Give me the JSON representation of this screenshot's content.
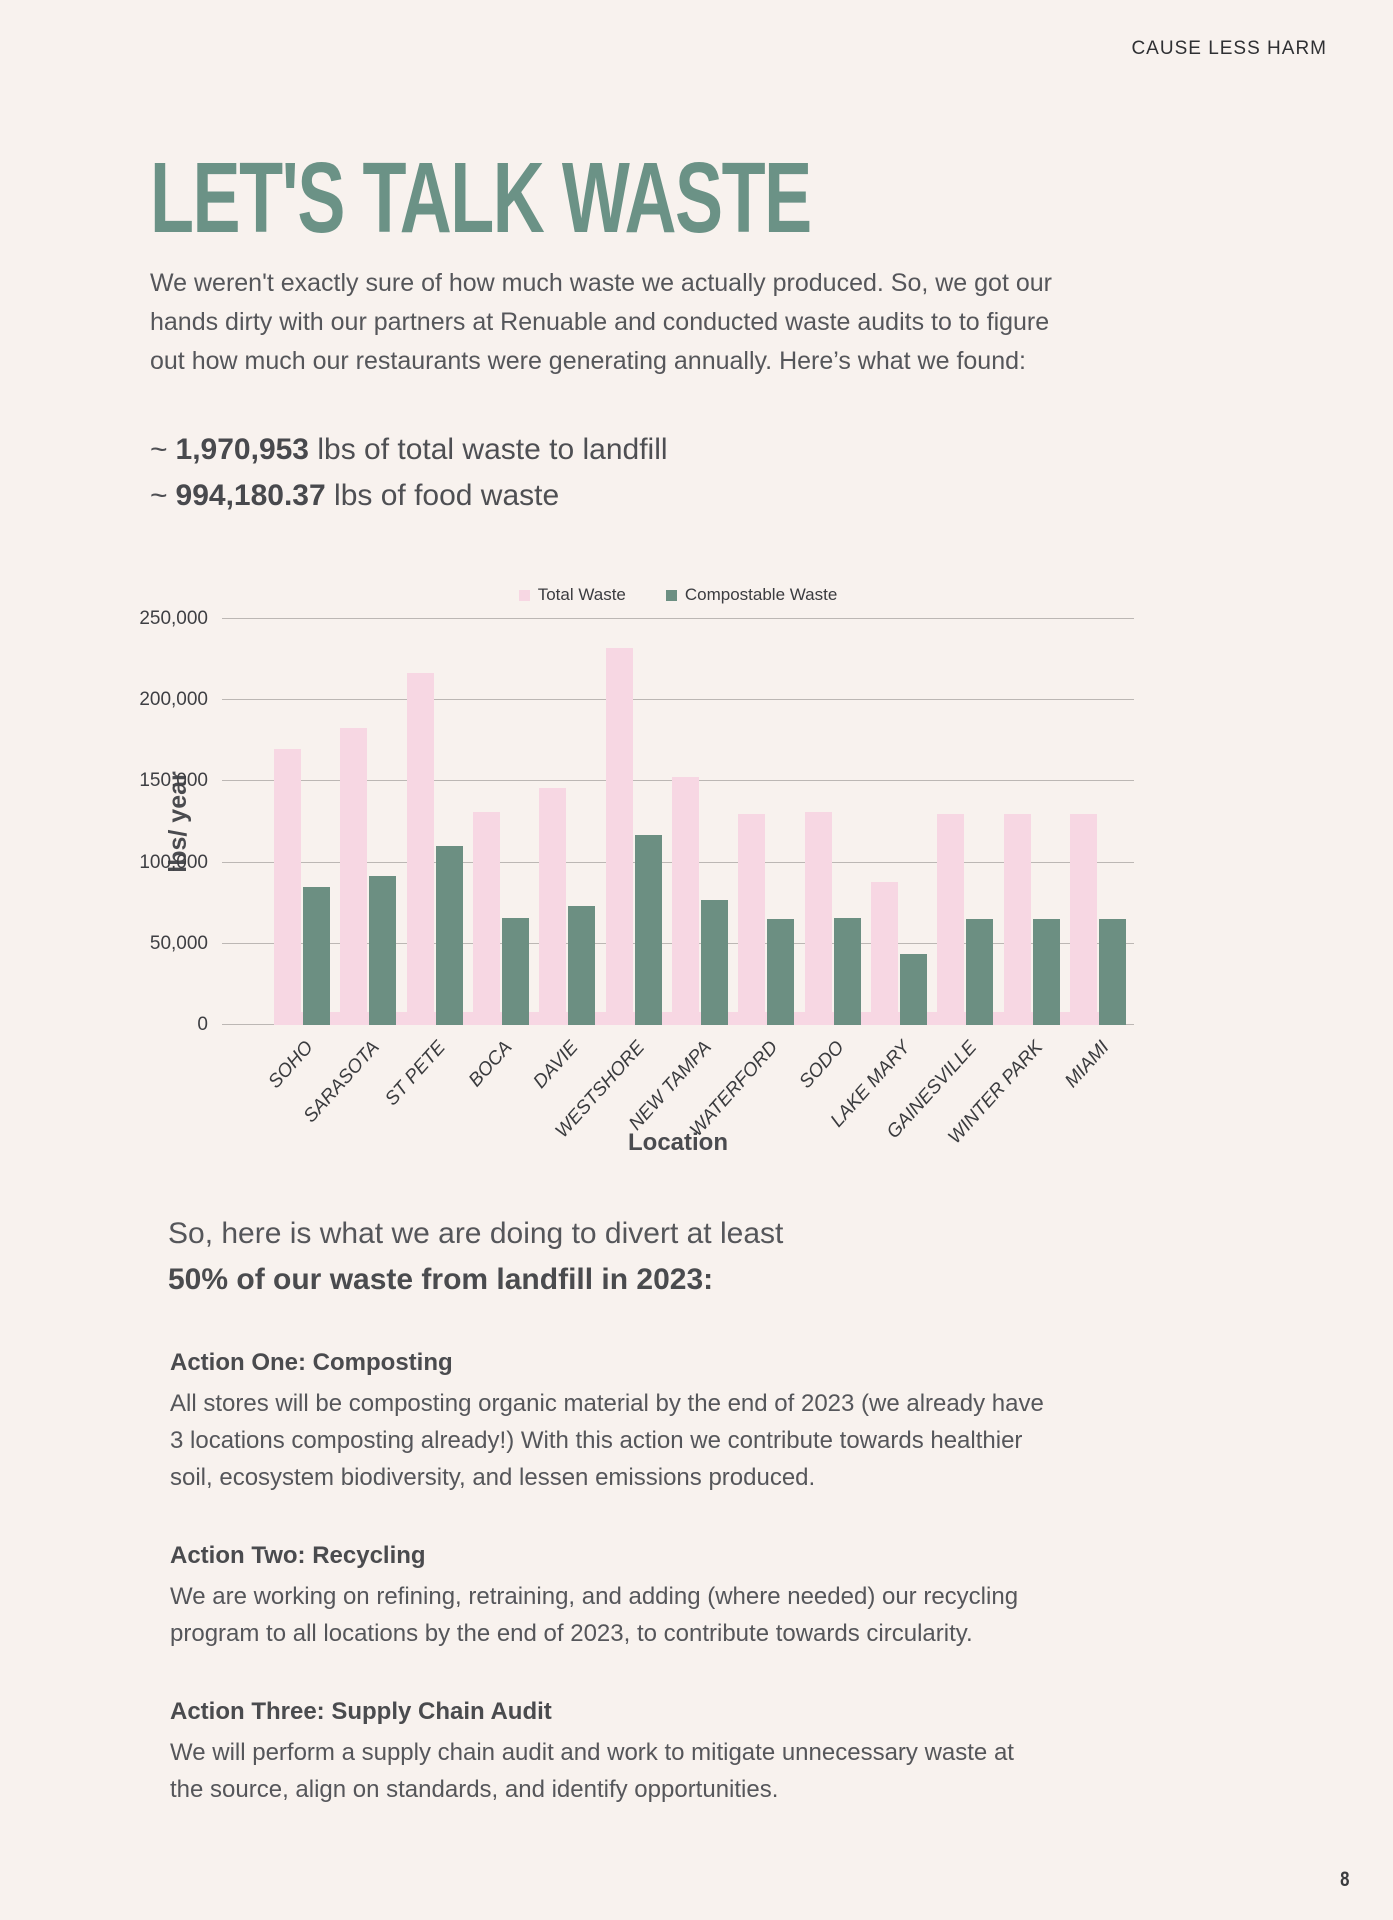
{
  "header": {
    "label": "CAUSE LESS HARM"
  },
  "page_title": "LET'S TALK WASTE",
  "intro": "We weren't exactly sure of how much waste we actually produced. So, we got our hands dirty with our partners at Renuable and conducted waste audits to to figure out how much our restaurants were generating annually. Here’s what we found:",
  "stats": [
    {
      "prefix": "~",
      "value": "1,970,953",
      "text": "lbs of total waste to landfill"
    },
    {
      "prefix": "~",
      "value": "994,180.37",
      "text": "lbs of food waste"
    }
  ],
  "chart_data": {
    "type": "bar",
    "title": "",
    "categories": [
      "SOHO",
      "SARASOTA",
      "ST PETE",
      "BOCA",
      "DAVIE",
      "WESTSHORE",
      "NEW TAMPA",
      "WATERFORD",
      "SODO",
      "LAKE MARY",
      "GAINESVILLE",
      "WINTER PARK",
      "MIAMI"
    ],
    "series": [
      {
        "name": "Total Waste",
        "color": "#F7D7E3",
        "values": [
          170000,
          183000,
          217000,
          131000,
          146000,
          232000,
          153000,
          130000,
          131000,
          88000,
          130000,
          130000,
          130000
        ]
      },
      {
        "name": "Compostable Waste",
        "color": "#6C8F82",
        "values": [
          85000,
          92000,
          110000,
          66000,
          73000,
          117000,
          77000,
          65000,
          66000,
          44000,
          65000,
          65000,
          65000
        ]
      }
    ],
    "xlabel": "Location",
    "ylabel": "lbs/ year",
    "ylim": [
      0,
      250000
    ],
    "ytick_step": 50000,
    "grid": true,
    "legend_position": "top"
  },
  "section": {
    "line1": "So, here is what we are doing to divert at least",
    "line2": "50% of our waste from landfill in 2023:"
  },
  "actions": [
    {
      "heading": "Action One: Composting",
      "body": "All stores will be composting organic material by the end of 2023 (we already have 3 locations composting already!) With this action we contribute towards healthier soil, ecosystem biodiversity, and lessen emissions produced."
    },
    {
      "heading": "Action Two: Recycling",
      "body": "We are working on refining, retraining, and adding (where needed) our recycling program to all locations by the end of 2023, to contribute towards circularity."
    },
    {
      "heading": "Action Three: Supply Chain Audit",
      "body": "We will perform a supply chain audit and work to mitigate unnecessary waste at the source, align on standards, and identify opportunities."
    }
  ],
  "page_number": "8",
  "colors": {
    "background": "#F8F2EE",
    "accent_green": "#6B9286",
    "bar_pink": "#F7D7E3",
    "bar_green": "#6C8F82",
    "text": "#55565A",
    "gridline": "#BCB7B4"
  }
}
